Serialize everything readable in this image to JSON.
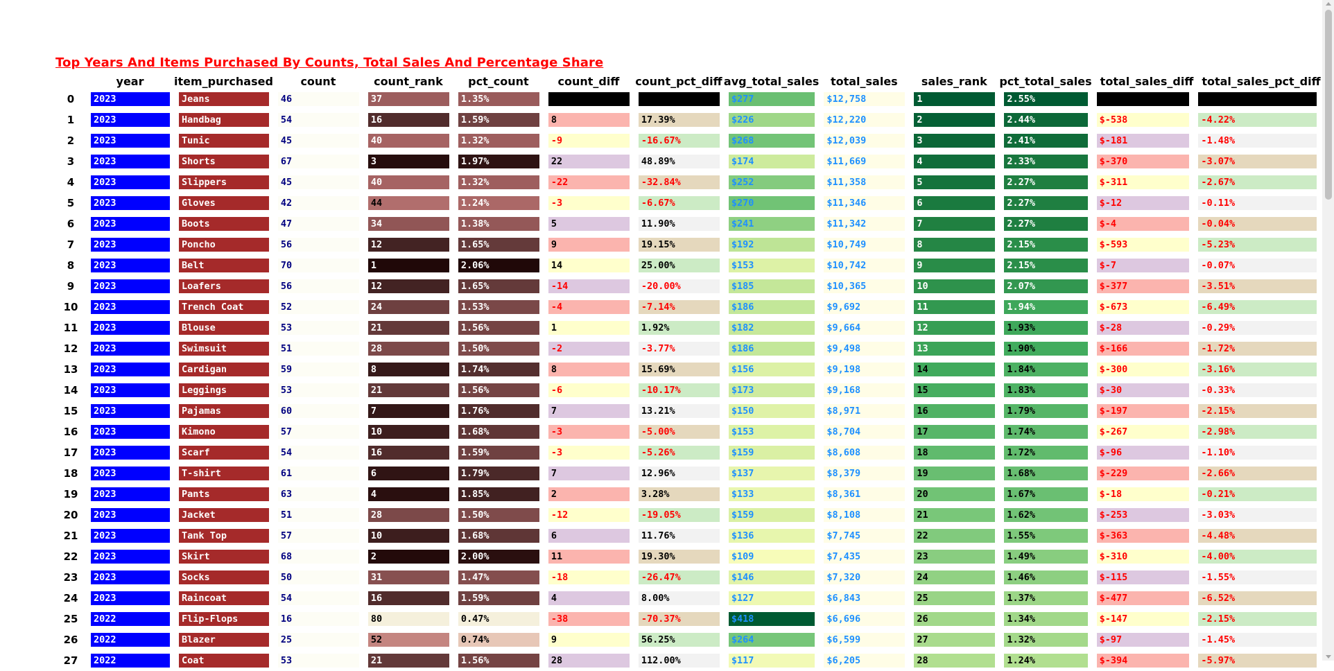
{
  "title": "Top Years And Items Purchased By Counts, Total Sales And Percentage Share",
  "columns": [
    "",
    "year",
    "item_purchased",
    "count",
    "count_rank",
    "pct_count",
    "count_diff",
    "count_pct_diff",
    "avg_total_sales",
    "total_sales",
    "sales_rank",
    "pct_total_sales",
    "total_sales_diff",
    "total_sales_pct_diff"
  ],
  "rows": [
    [
      "0",
      "2023",
      "Jeans",
      "46",
      "37",
      "1.35%",
      "",
      "",
      "$277",
      "$12,758",
      "1",
      "2.55%",
      "",
      ""
    ],
    [
      "1",
      "2023",
      "Handbag",
      "54",
      "16",
      "1.59%",
      "8",
      "17.39%",
      "$226",
      "$12,220",
      "2",
      "2.44%",
      "$-538",
      "-4.22%"
    ],
    [
      "2",
      "2023",
      "Tunic",
      "45",
      "40",
      "1.32%",
      "-9",
      "-16.67%",
      "$268",
      "$12,039",
      "3",
      "2.41%",
      "$-181",
      "-1.48%"
    ],
    [
      "3",
      "2023",
      "Shorts",
      "67",
      "3",
      "1.97%",
      "22",
      "48.89%",
      "$174",
      "$11,669",
      "4",
      "2.33%",
      "$-370",
      "-3.07%"
    ],
    [
      "4",
      "2023",
      "Slippers",
      "45",
      "40",
      "1.32%",
      "-22",
      "-32.84%",
      "$252",
      "$11,358",
      "5",
      "2.27%",
      "$-311",
      "-2.67%"
    ],
    [
      "5",
      "2023",
      "Gloves",
      "42",
      "44",
      "1.24%",
      "-3",
      "-6.67%",
      "$270",
      "$11,346",
      "6",
      "2.27%",
      "$-12",
      "-0.11%"
    ],
    [
      "6",
      "2023",
      "Boots",
      "47",
      "34",
      "1.38%",
      "5",
      "11.90%",
      "$241",
      "$11,342",
      "7",
      "2.27%",
      "$-4",
      "-0.04%"
    ],
    [
      "7",
      "2023",
      "Poncho",
      "56",
      "12",
      "1.65%",
      "9",
      "19.15%",
      "$192",
      "$10,749",
      "8",
      "2.15%",
      "$-593",
      "-5.23%"
    ],
    [
      "8",
      "2023",
      "Belt",
      "70",
      "1",
      "2.06%",
      "14",
      "25.00%",
      "$153",
      "$10,742",
      "9",
      "2.15%",
      "$-7",
      "-0.07%"
    ],
    [
      "9",
      "2023",
      "Loafers",
      "56",
      "12",
      "1.65%",
      "-14",
      "-20.00%",
      "$185",
      "$10,365",
      "10",
      "2.07%",
      "$-377",
      "-3.51%"
    ],
    [
      "10",
      "2023",
      "Trench Coat",
      "52",
      "24",
      "1.53%",
      "-4",
      "-7.14%",
      "$186",
      "$9,692",
      "11",
      "1.94%",
      "$-673",
      "-6.49%"
    ],
    [
      "11",
      "2023",
      "Blouse",
      "53",
      "21",
      "1.56%",
      "1",
      "1.92%",
      "$182",
      "$9,664",
      "12",
      "1.93%",
      "$-28",
      "-0.29%"
    ],
    [
      "12",
      "2023",
      "Swimsuit",
      "51",
      "28",
      "1.50%",
      "-2",
      "-3.77%",
      "$186",
      "$9,498",
      "13",
      "1.90%",
      "$-166",
      "-1.72%"
    ],
    [
      "13",
      "2023",
      "Cardigan",
      "59",
      "8",
      "1.74%",
      "8",
      "15.69%",
      "$156",
      "$9,198",
      "14",
      "1.84%",
      "$-300",
      "-3.16%"
    ],
    [
      "14",
      "2023",
      "Leggings",
      "53",
      "21",
      "1.56%",
      "-6",
      "-10.17%",
      "$173",
      "$9,168",
      "15",
      "1.83%",
      "$-30",
      "-0.33%"
    ],
    [
      "15",
      "2023",
      "Pajamas",
      "60",
      "7",
      "1.76%",
      "7",
      "13.21%",
      "$150",
      "$8,971",
      "16",
      "1.79%",
      "$-197",
      "-2.15%"
    ],
    [
      "16",
      "2023",
      "Kimono",
      "57",
      "10",
      "1.68%",
      "-3",
      "-5.00%",
      "$153",
      "$8,704",
      "17",
      "1.74%",
      "$-267",
      "-2.98%"
    ],
    [
      "17",
      "2023",
      "Scarf",
      "54",
      "16",
      "1.59%",
      "-3",
      "-5.26%",
      "$159",
      "$8,608",
      "18",
      "1.72%",
      "$-96",
      "-1.10%"
    ],
    [
      "18",
      "2023",
      "T-shirt",
      "61",
      "6",
      "1.79%",
      "7",
      "12.96%",
      "$137",
      "$8,379",
      "19",
      "1.68%",
      "$-229",
      "-2.66%"
    ],
    [
      "19",
      "2023",
      "Pants",
      "63",
      "4",
      "1.85%",
      "2",
      "3.28%",
      "$133",
      "$8,361",
      "20",
      "1.67%",
      "$-18",
      "-0.21%"
    ],
    [
      "20",
      "2023",
      "Jacket",
      "51",
      "28",
      "1.50%",
      "-12",
      "-19.05%",
      "$159",
      "$8,108",
      "21",
      "1.62%",
      "$-253",
      "-3.03%"
    ],
    [
      "21",
      "2023",
      "Tank Top",
      "57",
      "10",
      "1.68%",
      "6",
      "11.76%",
      "$136",
      "$7,745",
      "22",
      "1.55%",
      "$-363",
      "-4.48%"
    ],
    [
      "22",
      "2023",
      "Skirt",
      "68",
      "2",
      "2.00%",
      "11",
      "19.30%",
      "$109",
      "$7,435",
      "23",
      "1.49%",
      "$-310",
      "-4.00%"
    ],
    [
      "23",
      "2023",
      "Socks",
      "50",
      "31",
      "1.47%",
      "-18",
      "-26.47%",
      "$146",
      "$7,320",
      "24",
      "1.46%",
      "$-115",
      "-1.55%"
    ],
    [
      "24",
      "2023",
      "Raincoat",
      "54",
      "16",
      "1.59%",
      "4",
      "8.00%",
      "$127",
      "$6,843",
      "25",
      "1.37%",
      "$-477",
      "-6.52%"
    ],
    [
      "25",
      "2022",
      "Flip-Flops",
      "16",
      "80",
      "0.47%",
      "-38",
      "-70.37%",
      "$418",
      "$6,696",
      "26",
      "1.34%",
      "$-147",
      "-2.15%"
    ],
    [
      "26",
      "2022",
      "Blazer",
      "25",
      "52",
      "0.74%",
      "9",
      "56.25%",
      "$264",
      "$6,599",
      "27",
      "1.32%",
      "$-97",
      "-1.45%"
    ],
    [
      "27",
      "2022",
      "Coat",
      "53",
      "21",
      "1.56%",
      "28",
      "112.00%",
      "$117",
      "$6,205",
      "28",
      "1.24%",
      "$-394",
      "-5.97%"
    ]
  ],
  "colors": {
    "year_bg": "#0000ff",
    "item_bg": "#a52a2a",
    "count_bg": "#fdfdf5",
    "total_sales_bg": "#fffde6",
    "sales_positive_text": "#1e90ff",
    "negative_text": "#ff0000",
    "diff_null_bg": "#000000"
  }
}
